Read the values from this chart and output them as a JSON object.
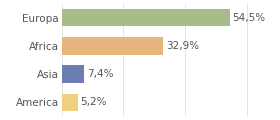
{
  "categories": [
    "Europa",
    "Africa",
    "Asia",
    "America"
  ],
  "values": [
    54.5,
    32.9,
    7.4,
    5.2
  ],
  "labels": [
    "54,5%",
    "32,9%",
    "7,4%",
    "5,2%"
  ],
  "bar_colors": [
    "#a8bc8a",
    "#e8b47e",
    "#6b7db3",
    "#f0d080"
  ],
  "background_color": "#ffffff",
  "xlim": [
    0,
    68
  ],
  "bar_height": 0.62,
  "label_fontsize": 7.5,
  "tick_fontsize": 7.5,
  "grid_color": "#dddddd",
  "grid_ticks": [
    0,
    20,
    40,
    60
  ],
  "text_color": "#555555"
}
